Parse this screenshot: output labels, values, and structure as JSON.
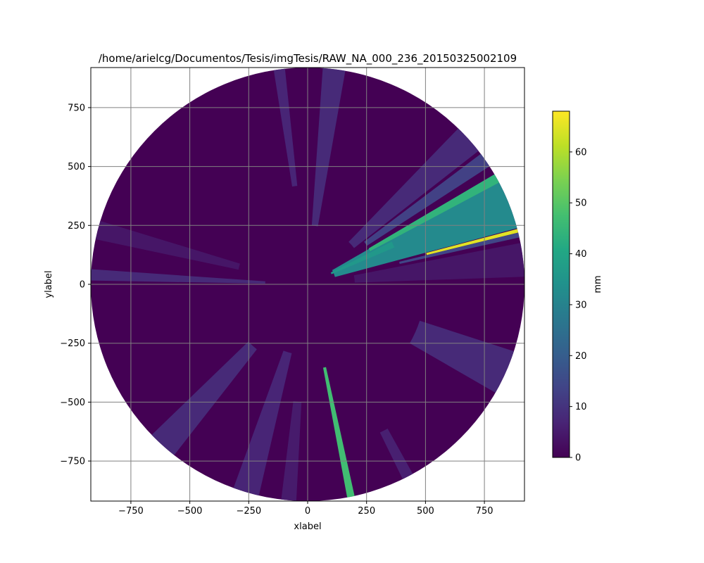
{
  "chart_data": {
    "type": "heatmap",
    "subtype": "polar-radar-sweep",
    "title": "/home/arielcg/Documentos/Tesis/imgTesis/RAW_NA_000_236_20150325002109",
    "xlabel": "xlabel",
    "ylabel": "ylabel",
    "xlim": [
      -920,
      920
    ],
    "ylim": [
      -920,
      920
    ],
    "radius": 920,
    "xticks": [
      -750,
      -500,
      -250,
      0,
      250,
      500,
      750
    ],
    "yticks": [
      -750,
      -500,
      -250,
      0,
      250,
      500,
      750
    ],
    "grid": true,
    "colormap": "viridis",
    "colorbar": {
      "label": "mm",
      "range": [
        0,
        68
      ],
      "ticks": [
        0,
        10,
        20,
        30,
        40,
        50,
        60
      ]
    },
    "background_value": 0,
    "features": [
      {
        "name": "main-echo",
        "angle_start": 15,
        "angle_end": 30,
        "r_start": 120,
        "r_end": 920,
        "value": 32
      },
      {
        "name": "main-echo-edge",
        "angle_start": 28,
        "angle_end": 30.5,
        "r_start": 300,
        "r_end": 920,
        "value": 44
      },
      {
        "name": "main-echo-core",
        "angle_start": 23,
        "angle_end": 27,
        "r_start": 110,
        "r_end": 400,
        "value": 36
      },
      {
        "name": "peak-streak",
        "angle_start": 13.8,
        "angle_end": 14.8,
        "r_start": 520,
        "r_end": 920,
        "value": 65
      },
      {
        "name": "near-peak",
        "angle_start": 12.5,
        "angle_end": 13.8,
        "r_start": 400,
        "r_end": 920,
        "value": 14
      },
      {
        "name": "south-streak",
        "angle_start": -79.5,
        "angle_end": -77.5,
        "r_start": 360,
        "r_end": 920,
        "value": 47
      },
      {
        "name": "ne-faint-1",
        "angle_start": 33,
        "angle_end": 37,
        "r_start": 300,
        "r_end": 920,
        "value": 13
      },
      {
        "name": "ne-faint-2",
        "angle_start": 38,
        "angle_end": 46,
        "r_start": 250,
        "r_end": 920,
        "value": 8
      },
      {
        "name": "north-faint",
        "angle_start": 80,
        "angle_end": 86,
        "r_start": 250,
        "r_end": 920,
        "value": 8
      },
      {
        "name": "north-faint-2",
        "angle_start": 96,
        "angle_end": 99,
        "r_start": 420,
        "r_end": 920,
        "value": 7
      },
      {
        "name": "west-streak",
        "angle_start": 176,
        "angle_end": 179,
        "r_start": 180,
        "r_end": 920,
        "value": 8
      },
      {
        "name": "wnw-faint",
        "angle_start": 163,
        "angle_end": 168,
        "r_start": 300,
        "r_end": 920,
        "value": 4
      },
      {
        "name": "sw-faint",
        "angle_start": 224,
        "angle_end": 232,
        "r_start": 350,
        "r_end": 920,
        "value": 8
      },
      {
        "name": "ssw-faint",
        "angle_start": 250,
        "angle_end": 257,
        "r_start": 300,
        "r_end": 920,
        "value": 7
      },
      {
        "name": "s-faint",
        "angle_start": 263,
        "angle_end": 267,
        "r_start": 500,
        "r_end": 920,
        "value": 5
      },
      {
        "name": "ese-faint",
        "angle_start": -30,
        "angle_end": -18,
        "r_start": 500,
        "r_end": 920,
        "value": 8
      },
      {
        "name": "e-faint",
        "angle_start": 2,
        "angle_end": 11,
        "r_start": 200,
        "r_end": 920,
        "value": 4
      },
      {
        "name": "se-small",
        "angle_start": -64,
        "angle_end": -61,
        "r_start": 700,
        "r_end": 920,
        "value": 6
      }
    ]
  }
}
